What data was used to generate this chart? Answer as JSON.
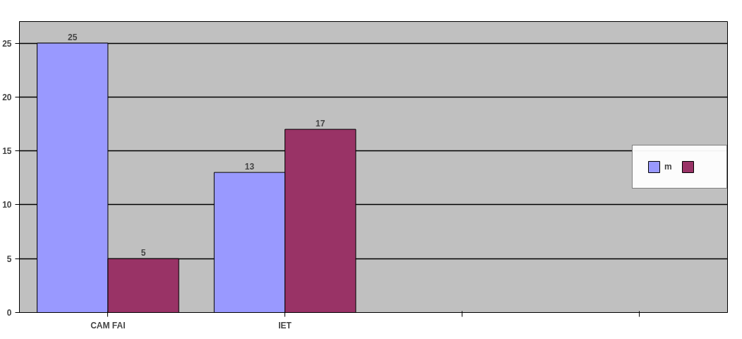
{
  "chart_data": {
    "type": "bar",
    "categories": [
      "CAM FAI",
      "IET",
      null,
      null
    ],
    "series": [
      {
        "name": "m",
        "color": "#9999ff",
        "values": [
          25,
          13,
          null,
          null
        ]
      },
      {
        "color": "#993366",
        "values": [
          5,
          17,
          null,
          null
        ]
      }
    ],
    "ylim": [
      0,
      27
    ],
    "yticks": [
      0,
      5,
      10,
      15,
      20,
      25
    ],
    "grid": "y",
    "legend": "right",
    "data_labels": true
  }
}
